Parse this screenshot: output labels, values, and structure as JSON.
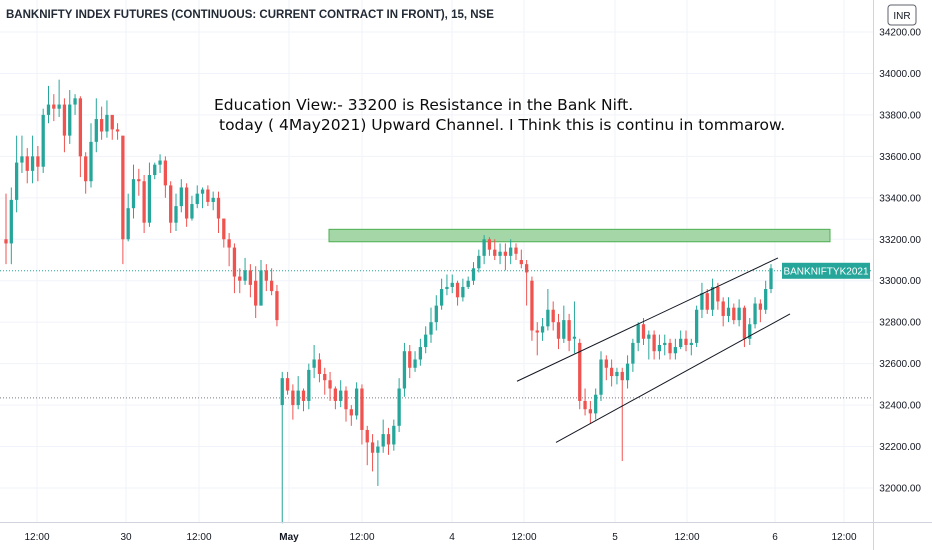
{
  "chart_data": {
    "type": "candlestick",
    "title": "BANKNIFTY INDEX FUTURES (CONTINUOUS: CURRENT CONTRACT IN FRONT), 15, NSE",
    "currency": "INR",
    "y_ticks": [
      "34200.00",
      "34000.00",
      "33800.00",
      "33600.00",
      "33400.00",
      "33200.00",
      "33000.00",
      "32800.00",
      "32600.00",
      "32400.00",
      "32200.00",
      "32000.00"
    ],
    "x_ticks": [
      {
        "label": "12:00",
        "bold": false
      },
      {
        "label": "30",
        "bold": false
      },
      {
        "label": "12:00",
        "bold": false
      },
      {
        "label": "May",
        "bold": true
      },
      {
        "label": "12:00",
        "bold": false
      },
      {
        "label": "4",
        "bold": false
      },
      {
        "label": "12:00",
        "bold": false
      },
      {
        "label": "5",
        "bold": false
      },
      {
        "label": "12:00",
        "bold": false
      },
      {
        "label": "6",
        "bold": false
      },
      {
        "label": "12:00",
        "bold": false
      }
    ],
    "ylim": [
      31800,
      34250
    ],
    "up_color": "#26a69a",
    "down_color": "#ef5350",
    "annotation_lines": [
      "Education View:- 33200 is Resistance in the Bank Nift.",
      "today ( 4May2021) Upward Channel. I Think this is continu in tommarow."
    ],
    "resistance_zone": {
      "low": 33188,
      "high": 33248,
      "color": "#a5d6a7"
    },
    "symbol_badge": {
      "label": "BANKNIFTYK2021",
      "value": 33048,
      "color": "#26a69a"
    },
    "reference_line_value": 32435,
    "channel_upper": [
      [
        32515,
        33110
      ]
    ],
    "channel_lower": [
      [
        32220,
        32840
      ]
    ],
    "candles": [
      [
        33200,
        33180,
        33420,
        33080
      ],
      [
        33180,
        33390,
        33450,
        33080
      ],
      [
        33390,
        33570,
        33700,
        33330
      ],
      [
        33570,
        33600,
        33700,
        33520
      ],
      [
        33600,
        33530,
        33640,
        33470
      ],
      [
        33530,
        33600,
        33700,
        33470
      ],
      [
        33600,
        33550,
        33650,
        33480
      ],
      [
        33550,
        33800,
        33830,
        33520
      ],
      [
        33800,
        33850,
        33940,
        33760
      ],
      [
        33850,
        33830,
        33900,
        33770
      ],
      [
        33830,
        33850,
        33970,
        33790
      ],
      [
        33850,
        33700,
        33880,
        33620
      ],
      [
        33700,
        33850,
        33920,
        33660
      ],
      [
        33850,
        33880,
        33900,
        33800
      ],
      [
        33880,
        33600,
        33890,
        33500
      ],
      [
        33600,
        33480,
        33620,
        33420
      ],
      [
        33480,
        33670,
        33760,
        33450
      ],
      [
        33670,
        33780,
        33880,
        33620
      ],
      [
        33780,
        33720,
        33840,
        33680
      ],
      [
        33720,
        33800,
        33870,
        33690
      ],
      [
        33800,
        33730,
        33790,
        33680
      ],
      [
        33730,
        33720,
        33760,
        33680
      ],
      [
        33700,
        33200,
        33250,
        33080
      ],
      [
        33200,
        33350,
        33420,
        33190
      ],
      [
        33350,
        33490,
        33560,
        33300
      ],
      [
        33490,
        33480,
        33540,
        33410
      ],
      [
        33480,
        33280,
        33510,
        33230
      ],
      [
        33280,
        33510,
        33570,
        33260
      ],
      [
        33510,
        33560,
        33570,
        33490
      ],
      [
        33560,
        33580,
        33610,
        33520
      ],
      [
        33580,
        33460,
        33600,
        33400
      ],
      [
        33460,
        33280,
        33480,
        33230
      ],
      [
        33280,
        33360,
        33420,
        33240
      ],
      [
        33360,
        33450,
        33490,
        33330
      ],
      [
        33450,
        33300,
        33470,
        33260
      ],
      [
        33300,
        33370,
        33410,
        33290
      ],
      [
        33370,
        33420,
        33460,
        33350
      ],
      [
        33420,
        33440,
        33450,
        33350
      ],
      [
        33440,
        33380,
        33460,
        33360
      ],
      [
        33380,
        33400,
        33430,
        33340
      ],
      [
        33400,
        33300,
        33430,
        33230
      ],
      [
        33300,
        33200,
        33250,
        33160
      ],
      [
        33200,
        33160,
        33230,
        33070
      ],
      [
        33160,
        33020,
        33180,
        32940
      ],
      [
        33020,
        33000,
        33060,
        32940
      ],
      [
        33000,
        33050,
        33110,
        32980
      ],
      [
        33050,
        32980,
        33080,
        32920
      ],
      [
        33000,
        32880,
        33070,
        32820
      ],
      [
        32880,
        33050,
        33100,
        32880
      ],
      [
        33050,
        33000,
        33080,
        32950
      ],
      [
        33000,
        32950,
        33060,
        32930
      ],
      [
        32950,
        32810,
        32980,
        32780
      ],
      [
        32400,
        32530,
        32560,
        31830
      ],
      [
        32530,
        32470,
        32560,
        32450
      ],
      [
        32470,
        32400,
        32500,
        32330
      ],
      [
        32400,
        32470,
        32540,
        32380
      ],
      [
        32470,
        32420,
        32480,
        32370
      ],
      [
        32420,
        32570,
        32600,
        32380
      ],
      [
        32580,
        32620,
        32690,
        32530
      ],
      [
        32620,
        32550,
        32650,
        32510
      ],
      [
        32550,
        32520,
        32580,
        32450
      ],
      [
        32520,
        32480,
        32560,
        32420
      ],
      [
        32480,
        32420,
        32490,
        32380
      ],
      [
        32420,
        32470,
        32520,
        32390
      ],
      [
        32470,
        32380,
        32490,
        32320
      ],
      [
        32380,
        32350,
        32400,
        32300
      ],
      [
        32350,
        32480,
        32510,
        32330
      ],
      [
        32480,
        32280,
        32500,
        32210
      ],
      [
        32280,
        32220,
        32300,
        32110
      ],
      [
        32220,
        32170,
        32260,
        32080
      ],
      [
        32170,
        32200,
        32230,
        32010
      ],
      [
        32200,
        32260,
        32330,
        32170
      ],
      [
        32260,
        32210,
        32290,
        32160
      ],
      [
        32210,
        32300,
        32330,
        32180
      ],
      [
        32300,
        32480,
        32530,
        32270
      ],
      [
        32480,
        32660,
        32700,
        32440
      ],
      [
        32660,
        32580,
        32690,
        32530
      ],
      [
        32580,
        32620,
        32660,
        32560
      ],
      [
        32620,
        32680,
        32720,
        32590
      ],
      [
        32680,
        32740,
        32780,
        32650
      ],
      [
        32740,
        32800,
        32870,
        32700
      ],
      [
        32800,
        32880,
        32930,
        32760
      ],
      [
        32880,
        32960,
        33010,
        32860
      ],
      [
        32960,
        32970,
        33030,
        32930
      ],
      [
        32970,
        32990,
        33030,
        32940
      ],
      [
        32990,
        32920,
        33000,
        32880
      ],
      [
        32920,
        32970,
        33010,
        32900
      ],
      [
        32970,
        33000,
        33020,
        32960
      ],
      [
        33000,
        33060,
        33090,
        32980
      ],
      [
        33060,
        33120,
        33150,
        33040
      ],
      [
        33120,
        33200,
        33220,
        33080
      ],
      [
        33200,
        33150,
        33210,
        33120
      ],
      [
        33150,
        33120,
        33200,
        33100
      ],
      [
        33120,
        33140,
        33180,
        33080
      ],
      [
        33140,
        33120,
        33180,
        33050
      ],
      [
        33120,
        33160,
        33200,
        33080
      ],
      [
        33160,
        33130,
        33180,
        33100
      ],
      [
        33100,
        33080,
        33150,
        33060
      ],
      [
        33080,
        33040,
        33100,
        32880
      ],
      [
        33000,
        32760,
        33020,
        32710
      ],
      [
        32760,
        32750,
        32800,
        32640
      ],
      [
        32750,
        32780,
        32820,
        32710
      ],
      [
        32780,
        32860,
        32960,
        32760
      ],
      [
        32860,
        32800,
        32900,
        32760
      ],
      [
        32800,
        32720,
        32840,
        32670
      ],
      [
        32720,
        32810,
        32880,
        32700
      ],
      [
        32810,
        32710,
        32840,
        32660
      ],
      [
        32720,
        32730,
        32900,
        32650
      ],
      [
        32700,
        32420,
        32720,
        32380
      ],
      [
        32420,
        32380,
        32480,
        32350
      ],
      [
        32380,
        32360,
        32420,
        32310
      ],
      [
        32360,
        32450,
        32480,
        32330
      ],
      [
        32450,
        32620,
        32660,
        32420
      ],
      [
        32620,
        32580,
        32640,
        32520
      ],
      [
        32580,
        32540,
        32620,
        32490
      ],
      [
        32540,
        32560,
        32580,
        32500
      ],
      [
        32560,
        32520,
        32580,
        32130
      ],
      [
        32520,
        32600,
        32640,
        32480
      ],
      [
        32600,
        32700,
        32720,
        32560
      ],
      [
        32700,
        32790,
        32800,
        32660
      ],
      [
        32790,
        32720,
        32820,
        32690
      ],
      [
        32720,
        32740,
        32760,
        32620
      ],
      [
        32740,
        32660,
        32760,
        32620
      ],
      [
        32660,
        32690,
        32740,
        32620
      ],
      [
        32690,
        32700,
        32740,
        32640
      ],
      [
        32700,
        32650,
        32720,
        32620
      ],
      [
        32650,
        32680,
        32720,
        32620
      ],
      [
        32680,
        32720,
        32760,
        32670
      ],
      [
        32720,
        32690,
        32760,
        32660
      ],
      [
        32690,
        32700,
        32720,
        32640
      ],
      [
        32700,
        32860,
        32880,
        32680
      ],
      [
        32860,
        32940,
        32990,
        32820
      ],
      [
        32940,
        32860,
        32960,
        32840
      ],
      [
        32860,
        32970,
        33010,
        32830
      ],
      [
        32970,
        32900,
        32990,
        32860
      ],
      [
        32900,
        32830,
        32920,
        32780
      ],
      [
        32830,
        32870,
        32920,
        32800
      ],
      [
        32870,
        32810,
        32890,
        32790
      ],
      [
        32810,
        32870,
        32910,
        32780
      ],
      [
        32870,
        32720,
        32880,
        32680
      ],
      [
        32720,
        32790,
        32820,
        32690
      ],
      [
        32790,
        32890,
        32920,
        32770
      ],
      [
        32890,
        32860,
        32910,
        32800
      ],
      [
        32860,
        32960,
        33000,
        32840
      ],
      [
        32960,
        33060,
        33080,
        32940
      ]
    ]
  }
}
